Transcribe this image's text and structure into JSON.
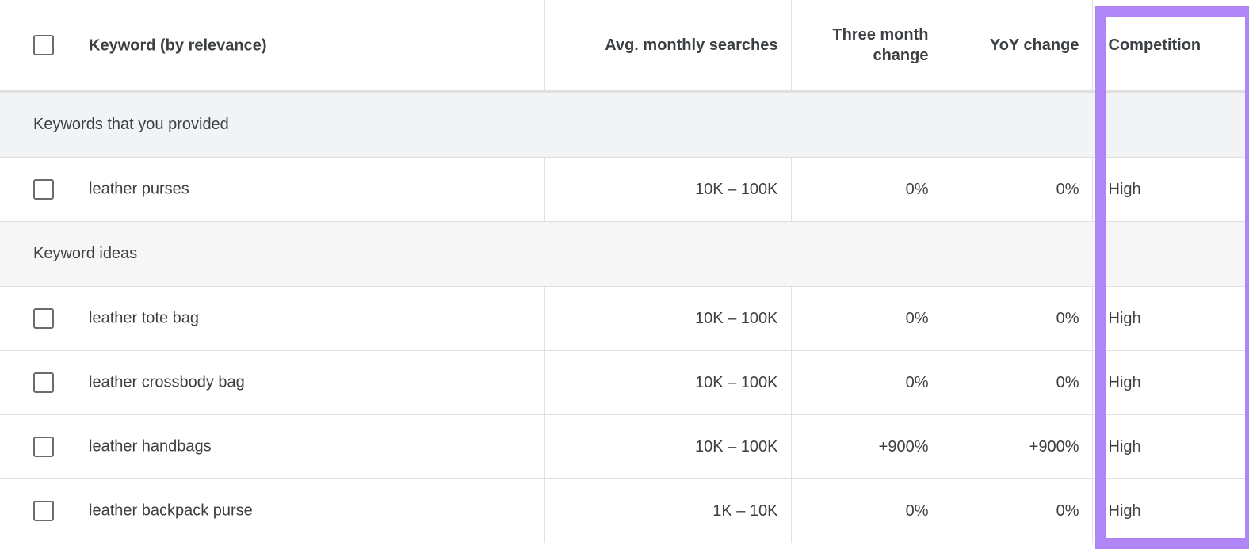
{
  "columns": {
    "keyword": "Keyword (by relevance)",
    "avg_monthly_searches": "Avg. monthly searches",
    "three_month_change": "Three month change",
    "yoy_change": "YoY change",
    "competition": "Competition"
  },
  "groups": [
    {
      "label": "Keywords that you provided",
      "rows": [
        {
          "keyword": "leather purses",
          "searches": "10K – 100K",
          "three_month": "0%",
          "yoy": "0%",
          "competition": "High"
        }
      ]
    },
    {
      "label": "Keyword ideas",
      "rows": [
        {
          "keyword": "leather tote bag",
          "searches": "10K – 100K",
          "three_month": "0%",
          "yoy": "0%",
          "competition": "High"
        },
        {
          "keyword": "leather crossbody bag",
          "searches": "10K – 100K",
          "three_month": "0%",
          "yoy": "0%",
          "competition": "High"
        },
        {
          "keyword": "leather handbags",
          "searches": "10K – 100K",
          "three_month": "+900%",
          "yoy": "+900%",
          "competition": "High"
        },
        {
          "keyword": "leather backpack purse",
          "searches": "1K – 10K",
          "three_month": "0%",
          "yoy": "0%",
          "competition": "High"
        }
      ]
    }
  ],
  "highlight_color": "#b085f5"
}
